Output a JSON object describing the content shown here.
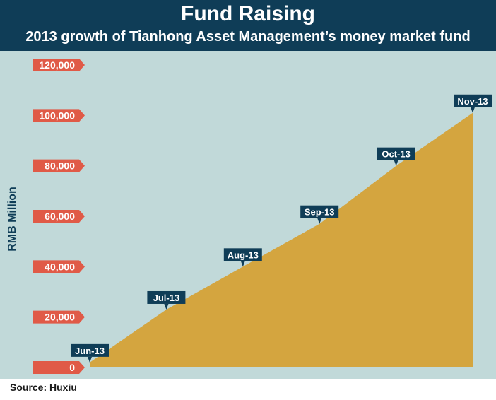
{
  "title": "Fund Raising",
  "subtitle": "2013 growth of Tianhong Asset Management’s money market fund",
  "source": "Source: Huxiu",
  "colors": {
    "header": "#0f3d57",
    "background": "#c1d9d9",
    "area": "#d4a53f",
    "tick_tag": "#e05a47",
    "label_tag": "#0f3d57"
  },
  "chart_data": {
    "type": "area",
    "ylabel": "RMB Million",
    "ylim": [
      0,
      120000
    ],
    "yticks": [
      0,
      20000,
      40000,
      60000,
      80000,
      100000,
      120000
    ],
    "ytick_labels": [
      "0",
      "20,000",
      "40,000",
      "60,000",
      "80,000",
      "100,000",
      "120,000"
    ],
    "x": [
      "Jun-13",
      "Jul-13",
      "Aug-13",
      "Sep-13",
      "Oct-13",
      "Nov-13"
    ],
    "values": [
      2000,
      23000,
      40000,
      57000,
      80000,
      101000
    ],
    "grid": false,
    "legend": "none"
  }
}
